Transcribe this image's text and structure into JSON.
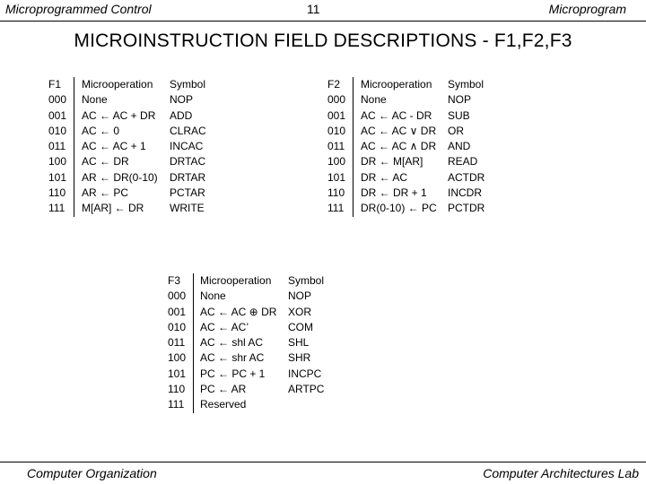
{
  "header": {
    "left": "Microprogrammed Control",
    "center": "11",
    "right": "Microprogram"
  },
  "title": "MICROINSTRUCTION  FIELD  DESCRIPTIONS - F1,F2,F3",
  "f1": {
    "codes": [
      "F1",
      "000",
      "001",
      "010",
      "011",
      "100",
      "101",
      "110",
      "111"
    ],
    "ops": [
      "Microoperation",
      "None",
      "AC ← AC + DR",
      "AC ← 0",
      "AC ← AC + 1",
      "AC ← DR",
      "AR ← DR(0-10)",
      "AR ← PC",
      "M[AR] ← DR"
    ],
    "symbols": [
      "Symbol",
      "NOP",
      "ADD",
      "CLRAC",
      "INCAC",
      "DRTAC",
      "DRTAR",
      "PCTAR",
      "WRITE"
    ]
  },
  "f2": {
    "codes": [
      "F2",
      "000",
      "001",
      "010",
      "011",
      "100",
      "101",
      "110",
      "111"
    ],
    "ops": [
      "Microoperation",
      "None",
      "AC ← AC - DR",
      "AC ← AC ∨ DR",
      "AC ← AC ∧ DR",
      "DR ← M[AR]",
      "DR ← AC",
      "DR ← DR + 1",
      "DR(0-10) ← PC"
    ],
    "symbols": [
      "Symbol",
      "NOP",
      "SUB",
      "OR",
      "AND",
      "READ",
      "ACTDR",
      "INCDR",
      "PCTDR"
    ]
  },
  "f3": {
    "codes": [
      "F3",
      "000",
      "001",
      "010",
      "011",
      "100",
      "101",
      "110",
      "111"
    ],
    "ops": [
      "Microoperation",
      "None",
      "AC ← AC ⊕ DR",
      "AC ← AC’",
      "AC ← shl AC",
      "AC ← shr AC",
      "PC ← PC + 1",
      "PC ← AR",
      "Reserved"
    ],
    "symbols": [
      "Symbol",
      "NOP",
      "XOR",
      "COM",
      "SHL",
      "SHR",
      "INCPC",
      "ARTPC",
      ""
    ]
  },
  "footer": {
    "left": "Computer Organization",
    "right": "Computer Architectures Lab"
  }
}
